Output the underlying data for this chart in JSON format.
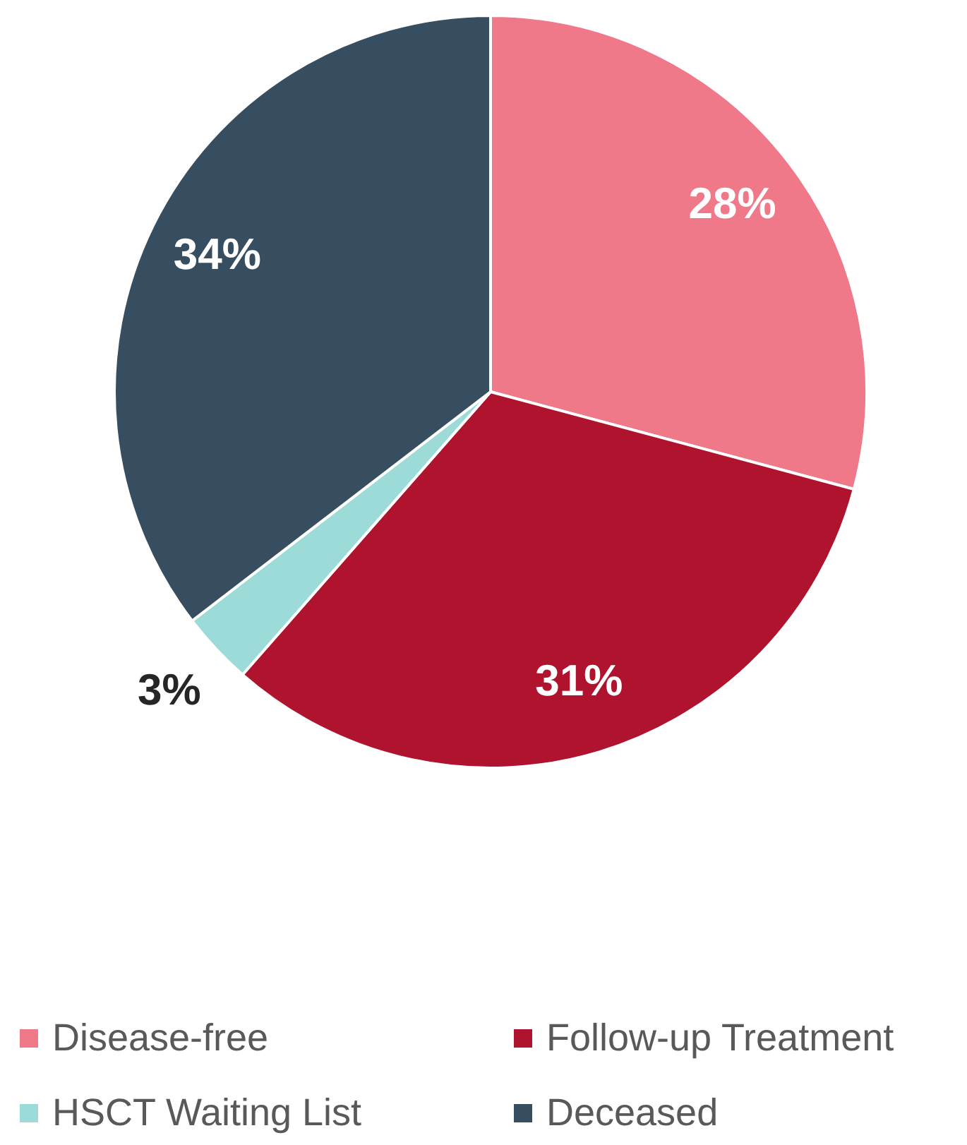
{
  "chart_data": {
    "type": "pie",
    "categories": [
      "Disease-free",
      "Follow-up Treatment",
      "HSCT Waiting List",
      "Deceased"
    ],
    "values": [
      28,
      31,
      3,
      34
    ],
    "colors": [
      "#ef7889",
      "#b0132e",
      "#9ddbd9",
      "#374d60"
    ],
    "value_labels": [
      "28%",
      "31%",
      "3%",
      "34%"
    ],
    "legend": "bottom"
  }
}
